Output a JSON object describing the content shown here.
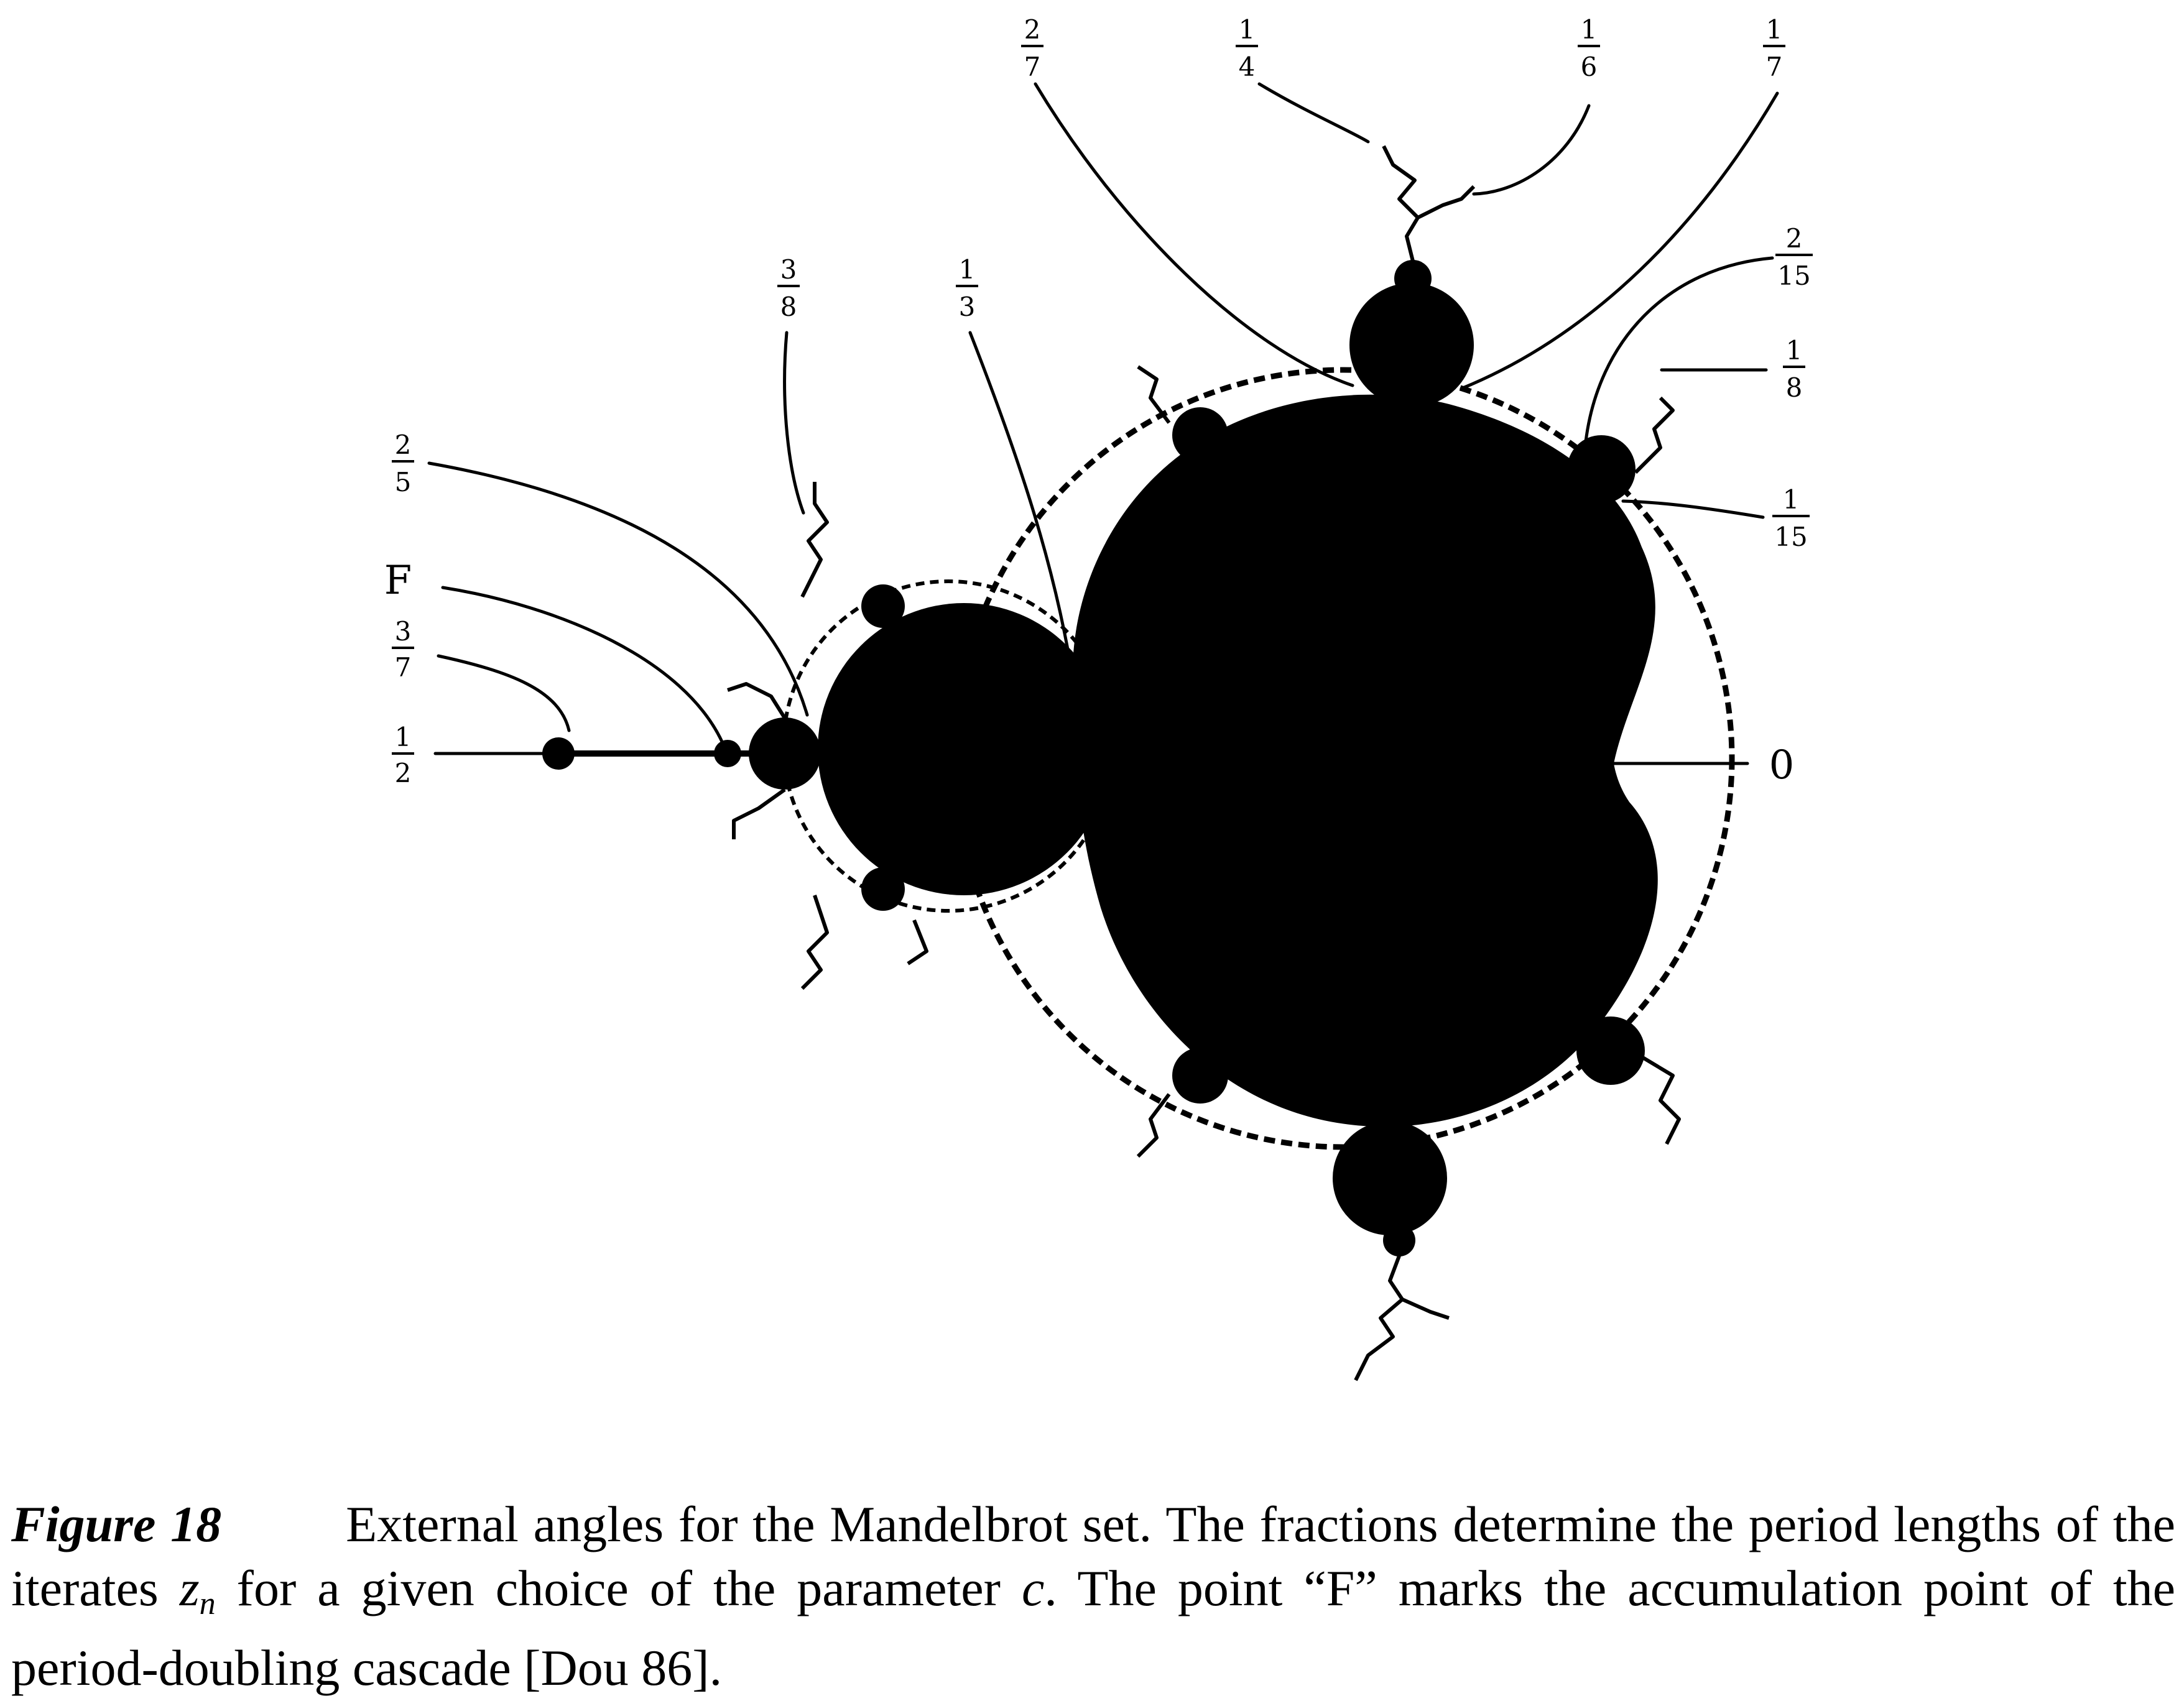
{
  "figure": {
    "angle_labels": [
      {
        "id": "half",
        "text": "1/2",
        "num": "1",
        "den": "2"
      },
      {
        "id": "three-sevenths",
        "text": "3/7",
        "num": "3",
        "den": "7"
      },
      {
        "id": "F",
        "text": "F"
      },
      {
        "id": "two-fifths",
        "text": "2/5",
        "num": "2",
        "den": "5"
      },
      {
        "id": "three-eighths",
        "text": "3/8",
        "num": "3",
        "den": "8"
      },
      {
        "id": "one-third",
        "text": "1/3",
        "num": "1",
        "den": "3"
      },
      {
        "id": "two-sevenths",
        "text": "2/7",
        "num": "2",
        "den": "7"
      },
      {
        "id": "one-fourth",
        "text": "1/4",
        "num": "1",
        "den": "4"
      },
      {
        "id": "one-sixth",
        "text": "1/6",
        "num": "1",
        "den": "6"
      },
      {
        "id": "one-seventh",
        "text": "1/7",
        "num": "1",
        "den": "7"
      },
      {
        "id": "two-fifteenths",
        "text": "2/15",
        "num": "2",
        "den": "15"
      },
      {
        "id": "one-eighth",
        "text": "1/8",
        "num": "1",
        "den": "8"
      },
      {
        "id": "one-fifteenth",
        "text": "1/15",
        "num": "1",
        "den": "15"
      },
      {
        "id": "zero",
        "text": "0"
      }
    ]
  },
  "caption": {
    "label": "Figure 18",
    "text_part1": "External angles for the Mandelbrot set. The fractions determine the period lengths of the iterates ",
    "variable": "z",
    "variable_subscript": "n",
    "text_part2": " for a given choice of the parameter ",
    "parameter": "c",
    "text_part3": ". The point “F” marks the accumulation point of the period-doubling cascade [Dou 86]."
  }
}
